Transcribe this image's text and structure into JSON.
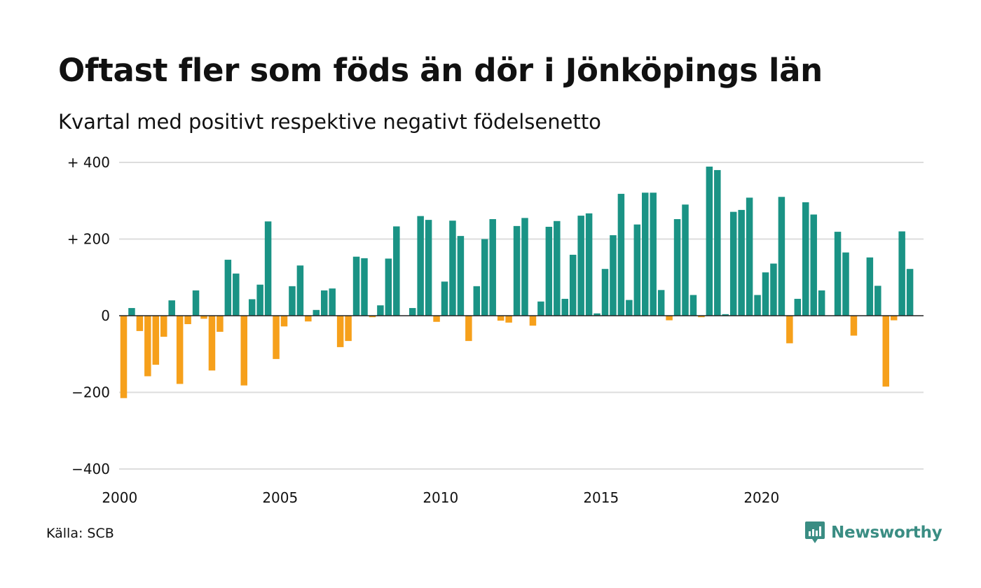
{
  "title": "Oftast fler som föds än dör i Jönköpings län",
  "subtitle": "Kvartal med positivt respektive negativt födelsenetto",
  "source": "Källa: SCB",
  "brand": "Newsworthy",
  "colors": {
    "positive": "#1a9385",
    "negative": "#f6a01b",
    "grid": "#dddddd",
    "brand": "#3a8d83"
  },
  "chart_data": {
    "type": "bar",
    "title": "Oftast fler som föds än dör i Jönköpings län",
    "subtitle": "Kvartal med positivt respektive negativt födelsenetto",
    "xlabel": "",
    "ylabel": "",
    "ylim": [
      -400,
      400
    ],
    "yticks": [
      {
        "value": 400,
        "label": "+ 400"
      },
      {
        "value": 200,
        "label": "+ 200"
      },
      {
        "value": 0,
        "label": "0"
      },
      {
        "value": -200,
        "label": "−200"
      },
      {
        "value": -400,
        "label": "−400"
      }
    ],
    "xticks": [
      "2000",
      "2005",
      "2010",
      "2015",
      "2020"
    ],
    "first_year": 2000,
    "grid": true,
    "legend": "none",
    "values": [
      -215,
      20,
      -40,
      -158,
      -128,
      -55,
      40,
      -178,
      -22,
      66,
      -8,
      -143,
      -42,
      146,
      110,
      -182,
      43,
      81,
      246,
      -113,
      -28,
      77,
      131,
      -15,
      15,
      66,
      71,
      -82,
      -66,
      154,
      150,
      -4,
      27,
      149,
      233,
      0,
      20,
      260,
      250,
      -16,
      89,
      248,
      208,
      -66,
      77,
      200,
      252,
      -13,
      -18,
      234,
      255,
      -26,
      37,
      232,
      247,
      44,
      159,
      261,
      267,
      6,
      122,
      210,
      318,
      41,
      238,
      321,
      321,
      67,
      -12,
      252,
      290,
      54,
      -4,
      389,
      380,
      4,
      271,
      276,
      308,
      54,
      113,
      136,
      310,
      -72,
      44,
      296,
      264,
      66,
      0,
      219,
      165,
      -52,
      0,
      152,
      78,
      -185,
      -12,
      220,
      122
    ]
  }
}
